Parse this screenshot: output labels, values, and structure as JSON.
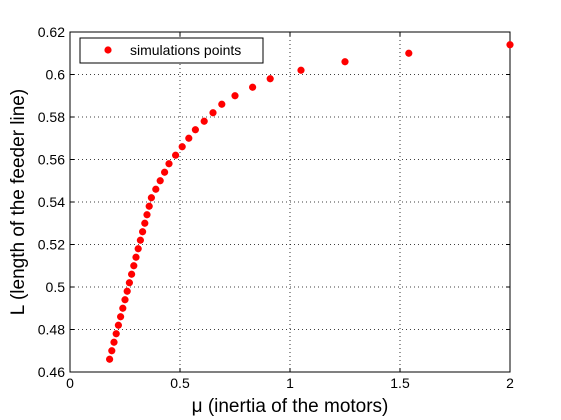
{
  "chart_data": {
    "type": "scatter",
    "xlabel": "μ (inertia of the motors)",
    "ylabel": "L (length of the feeder line)",
    "xlim": [
      0,
      2
    ],
    "ylim": [
      0.46,
      0.62
    ],
    "xticks": [
      "0",
      "0.5",
      "1",
      "1.5",
      "2"
    ],
    "yticks": [
      "0.46",
      "0.48",
      "0.5",
      "0.52",
      "0.54",
      "0.56",
      "0.58",
      "0.6",
      "0.62"
    ],
    "grid": true,
    "legend_position": "top-left",
    "marker_color": "#ff0000",
    "series": [
      {
        "name": "simulations points",
        "points": [
          [
            0.18,
            0.466
          ],
          [
            0.19,
            0.47
          ],
          [
            0.2,
            0.474
          ],
          [
            0.21,
            0.478
          ],
          [
            0.22,
            0.482
          ],
          [
            0.23,
            0.486
          ],
          [
            0.24,
            0.49
          ],
          [
            0.25,
            0.494
          ],
          [
            0.26,
            0.498
          ],
          [
            0.27,
            0.502
          ],
          [
            0.28,
            0.506
          ],
          [
            0.29,
            0.51
          ],
          [
            0.3,
            0.514
          ],
          [
            0.31,
            0.518
          ],
          [
            0.32,
            0.522
          ],
          [
            0.33,
            0.526
          ],
          [
            0.34,
            0.53
          ],
          [
            0.35,
            0.534
          ],
          [
            0.36,
            0.538
          ],
          [
            0.37,
            0.542
          ],
          [
            0.39,
            0.546
          ],
          [
            0.41,
            0.55
          ],
          [
            0.43,
            0.554
          ],
          [
            0.45,
            0.558
          ],
          [
            0.48,
            0.562
          ],
          [
            0.51,
            0.566
          ],
          [
            0.54,
            0.57
          ],
          [
            0.57,
            0.574
          ],
          [
            0.61,
            0.578
          ],
          [
            0.65,
            0.582
          ],
          [
            0.69,
            0.586
          ],
          [
            0.75,
            0.59
          ],
          [
            0.83,
            0.594
          ],
          [
            0.91,
            0.598
          ],
          [
            1.05,
            0.602
          ],
          [
            1.25,
            0.606
          ],
          [
            1.54,
            0.61
          ],
          [
            2.0,
            0.614
          ]
        ]
      }
    ]
  }
}
